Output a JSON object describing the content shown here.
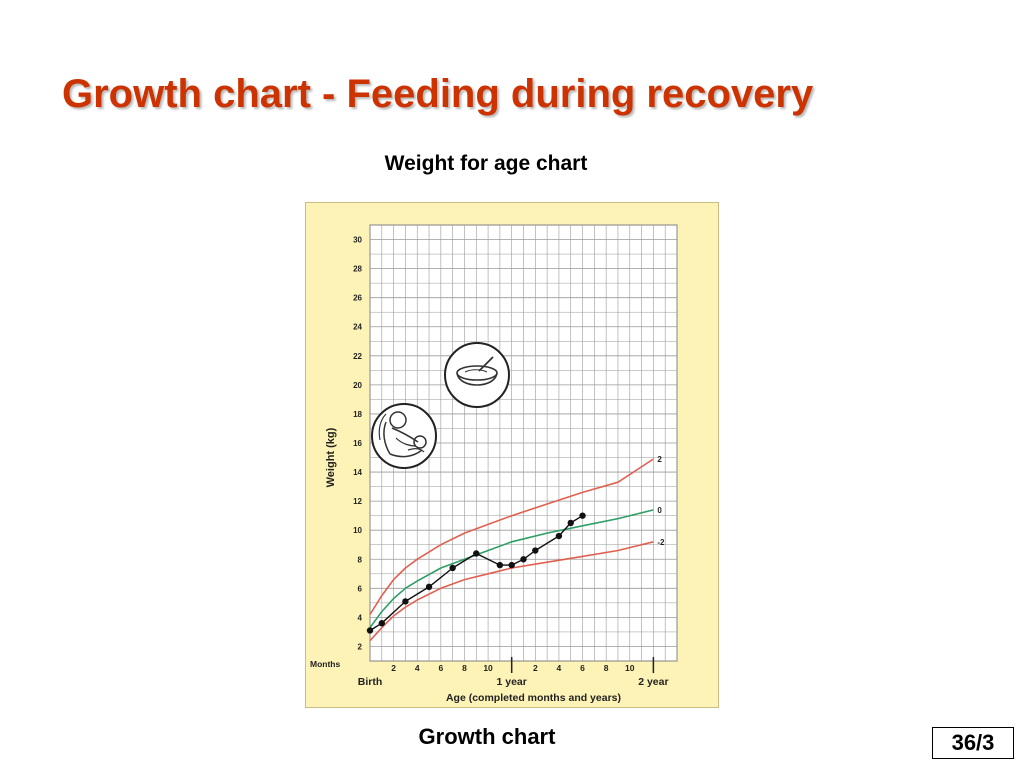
{
  "slide": {
    "title": "Growth chart - Feeding during recovery",
    "subtitle": "Weight for age chart",
    "caption": "Growth chart",
    "page_number": "36/3"
  },
  "chart_data": {
    "type": "line",
    "ylabel": "Weight (kg)",
    "xlabel": "Age (completed months and years)",
    "ylim": [
      1,
      31
    ],
    "xlim": [
      0,
      26
    ],
    "y_ticks": [
      2,
      4,
      6,
      8,
      10,
      12,
      14,
      16,
      18,
      20,
      22,
      24,
      26,
      28,
      30
    ],
    "months_row_label": "Months",
    "x_month_ticks": [
      {
        "month": 2,
        "label": "2"
      },
      {
        "month": 4,
        "label": "4"
      },
      {
        "month": 6,
        "label": "6"
      },
      {
        "month": 8,
        "label": "8"
      },
      {
        "month": 10,
        "label": "10"
      },
      {
        "month": 14,
        "label": "2"
      },
      {
        "month": 16,
        "label": "4"
      },
      {
        "month": 18,
        "label": "6"
      },
      {
        "month": 20,
        "label": "8"
      },
      {
        "month": 22,
        "label": "10"
      }
    ],
    "x_milestones": [
      {
        "month": 0,
        "label": "Birth"
      },
      {
        "month": 12,
        "label": "1 year"
      },
      {
        "month": 24,
        "label": "2 year"
      }
    ],
    "reference_curves": [
      {
        "name": "2",
        "color": "#e06050",
        "x": [
          0,
          1,
          2,
          3,
          4,
          6,
          8,
          10,
          12,
          15,
          18,
          21,
          24
        ],
        "y": [
          4.2,
          5.5,
          6.6,
          7.4,
          8.0,
          9.0,
          9.8,
          10.4,
          11.0,
          11.8,
          12.6,
          13.3,
          14.9
        ]
      },
      {
        "name": "0",
        "color": "#2e9e66",
        "x": [
          0,
          1,
          2,
          3,
          4,
          6,
          8,
          10,
          12,
          15,
          18,
          21,
          24
        ],
        "y": [
          3.3,
          4.4,
          5.3,
          6.0,
          6.5,
          7.4,
          8.0,
          8.6,
          9.2,
          9.8,
          10.3,
          10.8,
          11.4
        ]
      },
      {
        "name": "-2",
        "color": "#e06050",
        "x": [
          0,
          1,
          2,
          3,
          4,
          6,
          8,
          10,
          12,
          15,
          18,
          21,
          24
        ],
        "y": [
          2.4,
          3.3,
          4.1,
          4.7,
          5.2,
          6.0,
          6.6,
          7.0,
          7.4,
          7.8,
          8.2,
          8.6,
          9.2
        ]
      }
    ],
    "child_weights": {
      "x": [
        0,
        1,
        3,
        5,
        7,
        9,
        11,
        12,
        13,
        14,
        16,
        17,
        18
      ],
      "y": [
        3.1,
        3.6,
        5.1,
        6.1,
        7.4,
        8.4,
        7.6,
        7.6,
        8.0,
        8.6,
        9.6,
        10.5,
        11.0
      ]
    },
    "grid": true,
    "illustrations": [
      "breastfeeding-mother-icon",
      "food-bowl-icon"
    ]
  }
}
